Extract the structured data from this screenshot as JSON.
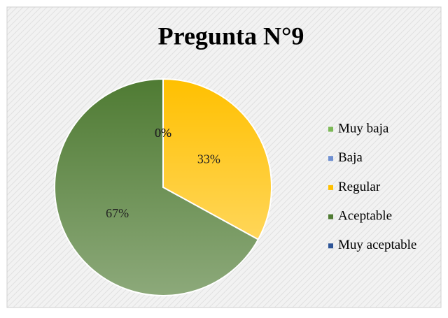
{
  "chart_data": {
    "type": "pie",
    "title": "Pregunta N°9",
    "categories": [
      "Muy baja",
      "Baja",
      "Regular",
      "Aceptable",
      "Muy aceptable"
    ],
    "values": [
      0,
      0,
      33,
      67,
      0
    ],
    "value_labels": [
      "0%",
      "0%",
      "33%",
      "67%",
      "0%"
    ],
    "colors": [
      "#7cb956",
      "#6e8fd1",
      "#ffc000",
      "#4f7b33",
      "#2e5597"
    ],
    "legend": "right"
  }
}
